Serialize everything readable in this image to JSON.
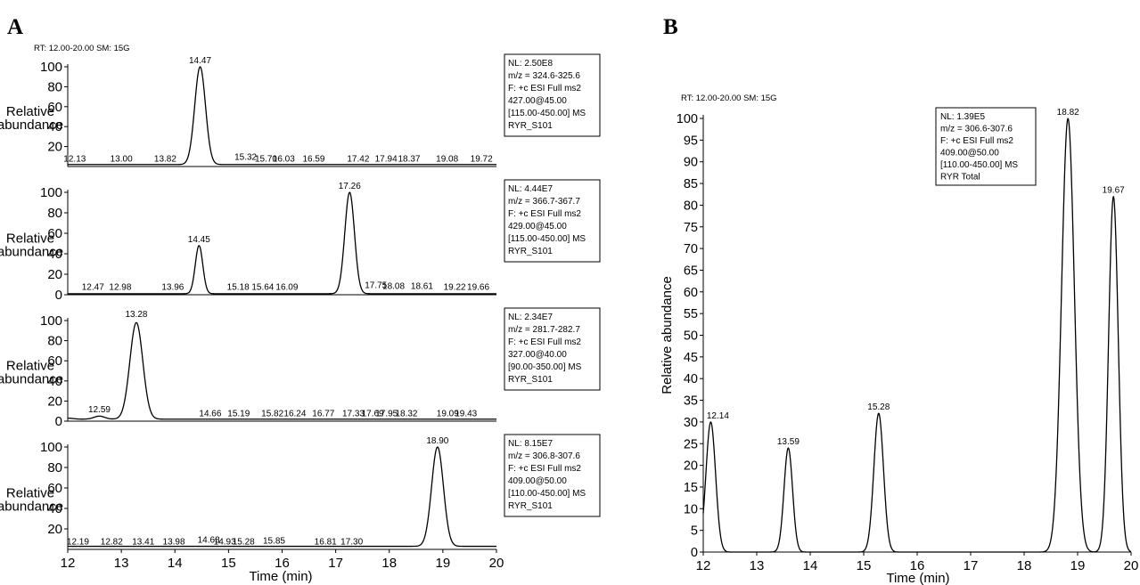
{
  "panels": {
    "a_label": "A",
    "b_label": "B"
  },
  "chart_data": [
    {
      "type": "line",
      "panel": "A",
      "header": "RT: 12.00-20.00 SM: 15G",
      "ylabel": "Relative abundance",
      "xlabel": "Time (min)",
      "xlim": [
        12,
        20
      ],
      "xticks": [
        "12",
        "13",
        "14",
        "15",
        "16",
        "17",
        "18",
        "19",
        "20"
      ],
      "subplots": [
        {
          "ylim": [
            0,
            100
          ],
          "yticks": [
            "20",
            "40",
            "60",
            "80",
            "100"
          ],
          "baseline": 2,
          "peaks": [
            {
              "x": 14.47,
              "y": 100,
              "w": 0.1
            }
          ],
          "labels": [
            {
              "x": 14.47,
              "y": 100,
              "text": "14.47"
            },
            {
              "x": 12.13,
              "y": 3,
              "text": "12.13"
            },
            {
              "x": 13.0,
              "y": 3,
              "text": "13.00"
            },
            {
              "x": 13.82,
              "y": 3,
              "text": "13.82"
            },
            {
              "x": 15.32,
              "y": 5,
              "text": "15.32"
            },
            {
              "x": 15.7,
              "y": 3,
              "text": "15.70"
            },
            {
              "x": 16.03,
              "y": 3,
              "text": "16.03"
            },
            {
              "x": 16.59,
              "y": 3,
              "text": "16.59"
            },
            {
              "x": 17.42,
              "y": 3,
              "text": "17.42"
            },
            {
              "x": 17.94,
              "y": 3,
              "text": "17.94"
            },
            {
              "x": 18.37,
              "y": 3,
              "text": "18.37"
            },
            {
              "x": 19.08,
              "y": 3,
              "text": "19.08"
            },
            {
              "x": 19.72,
              "y": 3,
              "text": "19.72"
            }
          ],
          "info": [
            "NL: 2.50E8",
            "m/z = 324.6-325.6",
            "F: +c ESI Full ms2",
            "427.00@45.00",
            "[115.00-450.00] MS",
            "RYR_S101"
          ]
        },
        {
          "ylim": [
            0,
            100
          ],
          "yticks": [
            "0",
            "20",
            "40",
            "60",
            "80",
            "100"
          ],
          "baseline": 1,
          "peaks": [
            {
              "x": 14.45,
              "y": 48,
              "w": 0.07
            },
            {
              "x": 17.26,
              "y": 100,
              "w": 0.09
            }
          ],
          "labels": [
            {
              "x": 14.45,
              "y": 48,
              "text": "14.45"
            },
            {
              "x": 17.26,
              "y": 100,
              "text": "17.26"
            },
            {
              "x": 12.47,
              "y": 3,
              "text": "12.47"
            },
            {
              "x": 12.98,
              "y": 3,
              "text": "12.98"
            },
            {
              "x": 13.96,
              "y": 3,
              "text": "13.96"
            },
            {
              "x": 15.18,
              "y": 3,
              "text": "15.18"
            },
            {
              "x": 15.64,
              "y": 3,
              "text": "15.64"
            },
            {
              "x": 16.09,
              "y": 3,
              "text": "16.09"
            },
            {
              "x": 17.75,
              "y": 5,
              "text": "17.75"
            },
            {
              "x": 18.08,
              "y": 4,
              "text": "18.08"
            },
            {
              "x": 18.61,
              "y": 4,
              "text": "18.61"
            },
            {
              "x": 19.22,
              "y": 3,
              "text": "19.22"
            },
            {
              "x": 19.66,
              "y": 3,
              "text": "19.66"
            }
          ],
          "info": [
            "NL: 4.44E7",
            "m/z = 366.7-367.7",
            "F: +c ESI Full ms2",
            "429.00@45.00",
            "[115.00-450.00] MS",
            "RYR_S101"
          ]
        },
        {
          "ylim": [
            0,
            100
          ],
          "yticks": [
            "0",
            "20",
            "40",
            "60",
            "80",
            "100"
          ],
          "baseline": 2,
          "peaks": [
            {
              "x": 13.28,
              "y": 98,
              "w": 0.12
            },
            {
              "x": 12.59,
              "y": 5,
              "w": 0.1
            },
            {
              "x": 12.0,
              "y": 3,
              "w": 0.1
            }
          ],
          "labels": [
            {
              "x": 13.28,
              "y": 100,
              "text": "13.28"
            },
            {
              "x": 12.59,
              "y": 7,
              "text": "12.59"
            },
            {
              "x": 14.66,
              "y": 3,
              "text": "14.66"
            },
            {
              "x": 15.19,
              "y": 3,
              "text": "15.19"
            },
            {
              "x": 15.82,
              "y": 3,
              "text": "15.82"
            },
            {
              "x": 16.24,
              "y": 3,
              "text": "16.24"
            },
            {
              "x": 16.77,
              "y": 3,
              "text": "16.77"
            },
            {
              "x": 17.33,
              "y": 3,
              "text": "17.33"
            },
            {
              "x": 17.69,
              "y": 3,
              "text": "17.69"
            },
            {
              "x": 17.95,
              "y": 3,
              "text": "17.95"
            },
            {
              "x": 18.32,
              "y": 3,
              "text": "18.32"
            },
            {
              "x": 19.09,
              "y": 3,
              "text": "19.09"
            },
            {
              "x": 19.43,
              "y": 3,
              "text": "19.43"
            }
          ],
          "info": [
            "NL: 2.34E7",
            "m/z = 281.7-282.7",
            "F: +c ESI Full ms2",
            "327.00@40.00",
            "[90.00-350.00] MS",
            "RYR_S101"
          ]
        },
        {
          "ylim": [
            0,
            100
          ],
          "yticks": [
            "20",
            "40",
            "60",
            "80",
            "100"
          ],
          "baseline": 3,
          "peaks": [
            {
              "x": 18.9,
              "y": 100,
              "w": 0.11
            }
          ],
          "labels": [
            {
              "x": 18.9,
              "y": 100,
              "text": "18.90"
            },
            {
              "x": 12.19,
              "y": 3,
              "text": "12.19"
            },
            {
              "x": 12.82,
              "y": 3,
              "text": "12.82"
            },
            {
              "x": 13.41,
              "y": 3,
              "text": "13.41"
            },
            {
              "x": 13.98,
              "y": 3,
              "text": "13.98"
            },
            {
              "x": 14.63,
              "y": 5,
              "text": "14.63"
            },
            {
              "x": 14.93,
              "y": 3,
              "text": "14.93"
            },
            {
              "x": 15.28,
              "y": 3,
              "text": "15.28"
            },
            {
              "x": 15.85,
              "y": 4,
              "text": "15.85"
            },
            {
              "x": 16.81,
              "y": 3,
              "text": "16.81"
            },
            {
              "x": 17.3,
              "y": 3,
              "text": "17.30"
            }
          ],
          "info": [
            "NL: 8.15E7",
            "m/z = 306.8-307.6",
            "F: +c ESI Full ms2",
            "409.00@50.00",
            "[110.00-450.00] MS",
            "RYR_S101"
          ]
        }
      ]
    },
    {
      "type": "line",
      "panel": "B",
      "header": "RT: 12.00-20.00 SM: 15G",
      "ylabel": "Relative abundance",
      "xlabel": "Time (min)",
      "xlim": [
        12,
        20
      ],
      "ylim": [
        0,
        100
      ],
      "xticks": [
        "12",
        "13",
        "14",
        "15",
        "16",
        "17",
        "18",
        "19",
        "20"
      ],
      "yticks": [
        "0",
        "5",
        "10",
        "15",
        "20",
        "25",
        "30",
        "35",
        "40",
        "45",
        "50",
        "55",
        "60",
        "65",
        "70",
        "75",
        "80",
        "85",
        "90",
        "95",
        "100"
      ],
      "baseline": 0,
      "peaks": [
        {
          "x": 12.14,
          "y": 30,
          "w": 0.09
        },
        {
          "x": 13.59,
          "y": 24,
          "w": 0.08
        },
        {
          "x": 15.28,
          "y": 32,
          "w": 0.09
        },
        {
          "x": 18.82,
          "y": 100,
          "w": 0.12
        },
        {
          "x": 19.67,
          "y": 82,
          "w": 0.09
        }
      ],
      "labels": [
        {
          "x": 12.14,
          "y": 30,
          "text": "12.14"
        },
        {
          "x": 13.59,
          "y": 24,
          "text": "13.59"
        },
        {
          "x": 15.28,
          "y": 32,
          "text": "15.28"
        },
        {
          "x": 18.82,
          "y": 100,
          "text": "18.82"
        },
        {
          "x": 19.67,
          "y": 82,
          "text": "19.67"
        }
      ],
      "info": [
        "NL: 1.39E5",
        "m/z = 306.6-307.6",
        "F: +c ESI Full ms2",
        "409.00@50.00",
        "[110.00-450.00] MS",
        "RYR Total"
      ]
    }
  ]
}
